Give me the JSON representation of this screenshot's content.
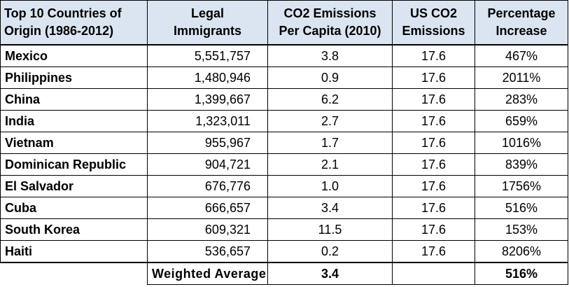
{
  "headers": {
    "country": [
      "Top 10 Countries of",
      "Origin (1986-2012)"
    ],
    "immigrants": [
      "Legal",
      "Immigrants"
    ],
    "co2": [
      "CO2 Emissions",
      "Per Capita (2010)"
    ],
    "us": [
      "US CO2",
      "Emissions"
    ],
    "pct": [
      "Percentage",
      "Increase"
    ]
  },
  "rows": [
    {
      "country": "Mexico",
      "immigrants": "5,551,757",
      "co2": "3.8",
      "us": "17.6",
      "pct": "467%"
    },
    {
      "country": "Philippines",
      "immigrants": "1,480,946",
      "co2": "0.9",
      "us": "17.6",
      "pct": "2011%"
    },
    {
      "country": "China",
      "immigrants": "1,399,667",
      "co2": "6.2",
      "us": "17.6",
      "pct": "283%"
    },
    {
      "country": "India",
      "immigrants": "1,323,011",
      "co2": "2.7",
      "us": "17.6",
      "pct": "659%"
    },
    {
      "country": "Vietnam",
      "immigrants": "955,967",
      "co2": "1.7",
      "us": "17.6",
      "pct": "1016%"
    },
    {
      "country": "Dominican Republic",
      "immigrants": "904,721",
      "co2": "2.1",
      "us": "17.6",
      "pct": "839%"
    },
    {
      "country": "El Salvador",
      "immigrants": "676,776",
      "co2": "1.0",
      "us": "17.6",
      "pct": "1756%"
    },
    {
      "country": "Cuba",
      "immigrants": "666,657",
      "co2": "3.4",
      "us": "17.6",
      "pct": "516%"
    },
    {
      "country": "South Korea",
      "immigrants": "609,321",
      "co2": "11.5",
      "us": "17.6",
      "pct": "153%"
    },
    {
      "country": "Haiti",
      "immigrants": "536,657",
      "co2": "0.2",
      "us": "17.6",
      "pct": "8206%"
    }
  ],
  "total": {
    "label": "Weighted Average",
    "co2": "3.4",
    "us": "",
    "pct": "516%"
  }
}
